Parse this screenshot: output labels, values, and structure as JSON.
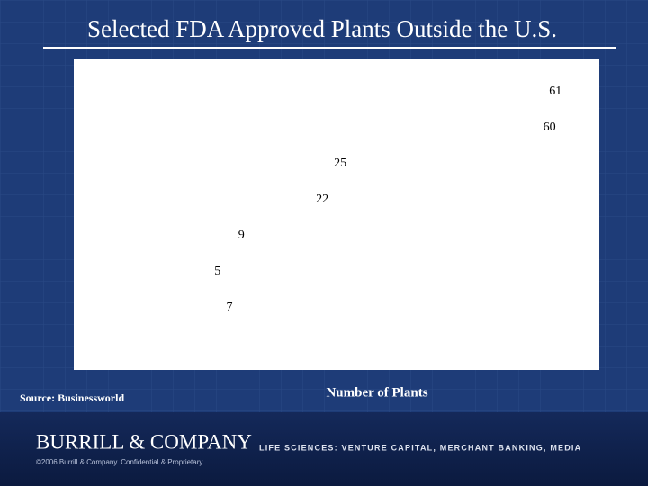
{
  "chart_data": {
    "type": "barh",
    "title": "Selected FDA Approved Plants Outside the U.S.",
    "x_label": "Number of Plants",
    "categories": [
      null,
      null,
      null,
      null,
      null,
      null,
      null
    ],
    "values": [
      61,
      60,
      25,
      22,
      9,
      5,
      7
    ],
    "color": "#ffffff",
    "xlim": [
      0,
      70
    ]
  },
  "source": "Source: Businessworld",
  "footer": {
    "company": "BURRILL & COMPANY",
    "tagline": "LIFE SCIENCES: VENTURE CAPITAL, MERCHANT BANKING, MEDIA",
    "copyright": "©2006 Burrill & Company. Confidential & Proprietary"
  }
}
